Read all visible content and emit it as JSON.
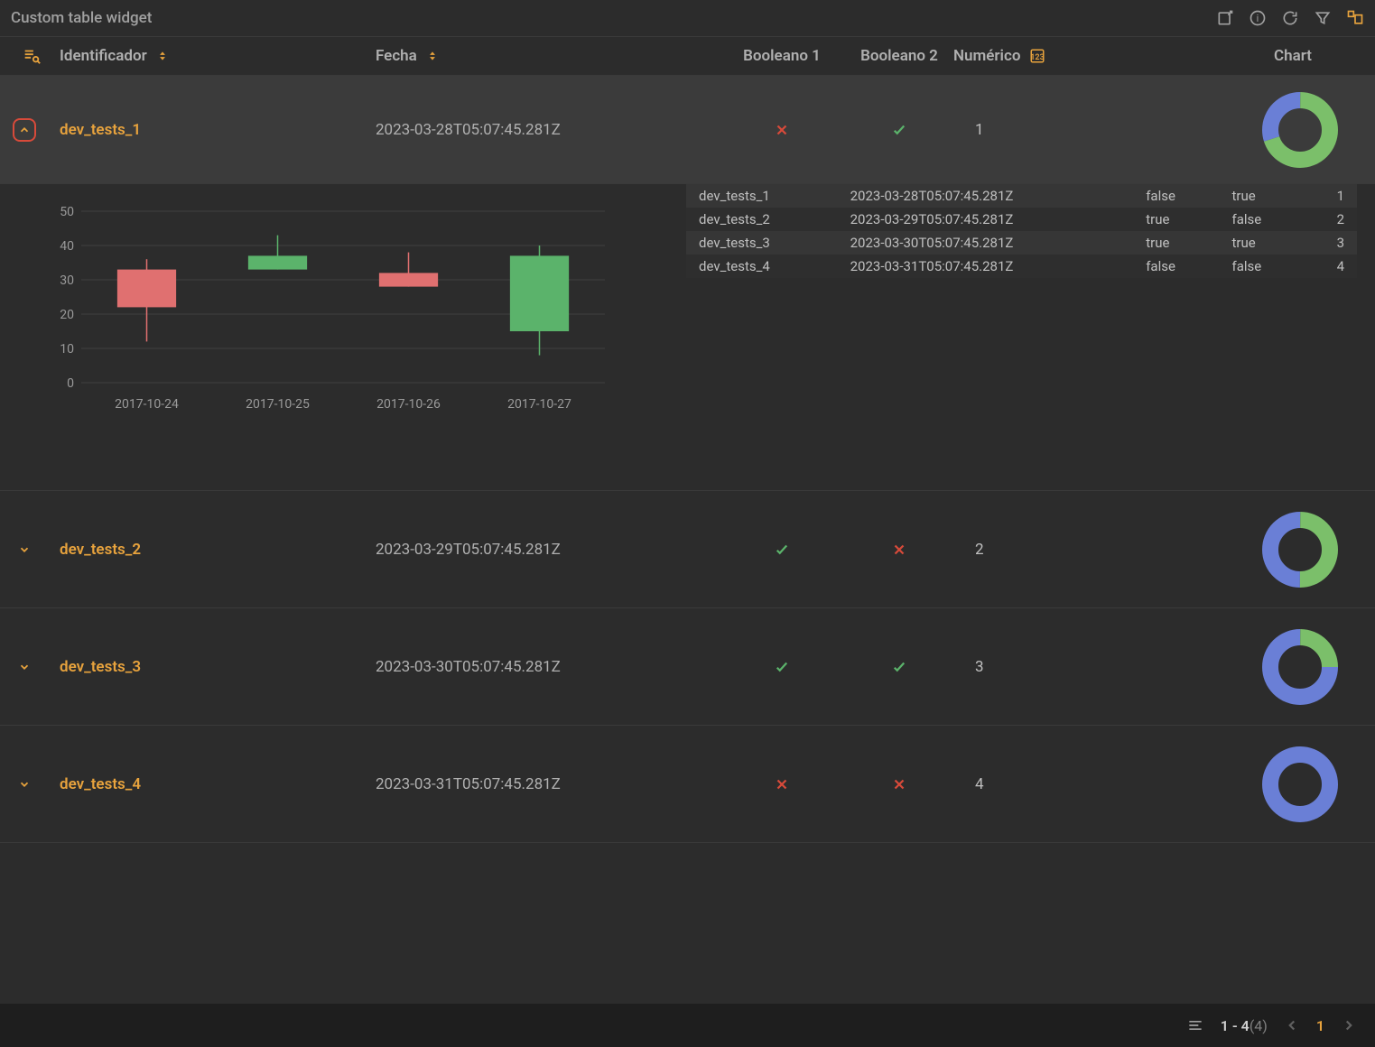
{
  "header": {
    "title": "Custom table widget"
  },
  "columns": {
    "identificador": "Identificador",
    "fecha": "Fecha",
    "booleano1": "Booleano 1",
    "booleano2": "Booleano 2",
    "numerico": "Numérico",
    "chart": "Chart"
  },
  "donut_colors": {
    "green": "#7bbf6a",
    "blue": "#6a7fd6",
    "track": "#3b3b3b"
  },
  "rows": [
    {
      "id": "dev_tests_1",
      "fecha": "2023-03-28T05:07:45.281Z",
      "bool1": false,
      "bool2": true,
      "num": "1",
      "expanded": true,
      "donut": {
        "green_pct": 70,
        "blue_pct": 30
      }
    },
    {
      "id": "dev_tests_2",
      "fecha": "2023-03-29T05:07:45.281Z",
      "bool1": true,
      "bool2": false,
      "num": "2",
      "expanded": false,
      "donut": {
        "green_pct": 50,
        "blue_pct": 50
      }
    },
    {
      "id": "dev_tests_3",
      "fecha": "2023-03-30T05:07:45.281Z",
      "bool1": true,
      "bool2": true,
      "num": "3",
      "expanded": false,
      "donut": {
        "green_pct": 25,
        "blue_pct": 75
      }
    },
    {
      "id": "dev_tests_4",
      "fecha": "2023-03-31T05:07:45.281Z",
      "bool1": false,
      "bool2": false,
      "num": "4",
      "expanded": false,
      "donut": {
        "green_pct": 0,
        "blue_pct": 100
      }
    }
  ],
  "expanded_detail": {
    "candlestick": {
      "type": "candlestick",
      "ylim": [
        0,
        50
      ],
      "ytick_step": 10,
      "yticks": [
        "0",
        "10",
        "20",
        "30",
        "40",
        "50"
      ],
      "x_categories": [
        "2017-10-24",
        "2017-10-25",
        "2017-10-26",
        "2017-10-27"
      ],
      "grid_color": "#3f3f3f",
      "axis_text_color": "#9a9a9a",
      "up_color": "#5bb36b",
      "down_color": "#e07070",
      "bar_width": 0.45,
      "axis_fontsize": 14,
      "bars": [
        {
          "x": "2017-10-24",
          "open": 33,
          "close": 22,
          "high": 36,
          "low": 12,
          "dir": "down"
        },
        {
          "x": "2017-10-25",
          "open": 33,
          "close": 37,
          "high": 43,
          "low": 33,
          "dir": "up"
        },
        {
          "x": "2017-10-26",
          "open": 32,
          "close": 28,
          "high": 38,
          "low": 28,
          "dir": "down"
        },
        {
          "x": "2017-10-27",
          "open": 15,
          "close": 37,
          "high": 40,
          "low": 8,
          "dir": "up"
        }
      ]
    },
    "sub_table": {
      "rows": [
        {
          "id": "dev_tests_1",
          "fecha": "2023-03-28T05:07:45.281Z",
          "b1": "false",
          "b2": "true",
          "n": "1"
        },
        {
          "id": "dev_tests_2",
          "fecha": "2023-03-29T05:07:45.281Z",
          "b1": "true",
          "b2": "false",
          "n": "2"
        },
        {
          "id": "dev_tests_3",
          "fecha": "2023-03-30T05:07:45.281Z",
          "b1": "true",
          "b2": "true",
          "n": "3"
        },
        {
          "id": "dev_tests_4",
          "fecha": "2023-03-31T05:07:45.281Z",
          "b1": "false",
          "b2": "false",
          "n": "4"
        }
      ]
    }
  },
  "pagination": {
    "range": "1 - 4",
    "total": "(4)",
    "current_page": "1"
  },
  "icon_colors": {
    "accent": "#e8a33d",
    "muted": "#a0a0a0",
    "true": "#5bb36b",
    "false": "#d84a3a"
  }
}
